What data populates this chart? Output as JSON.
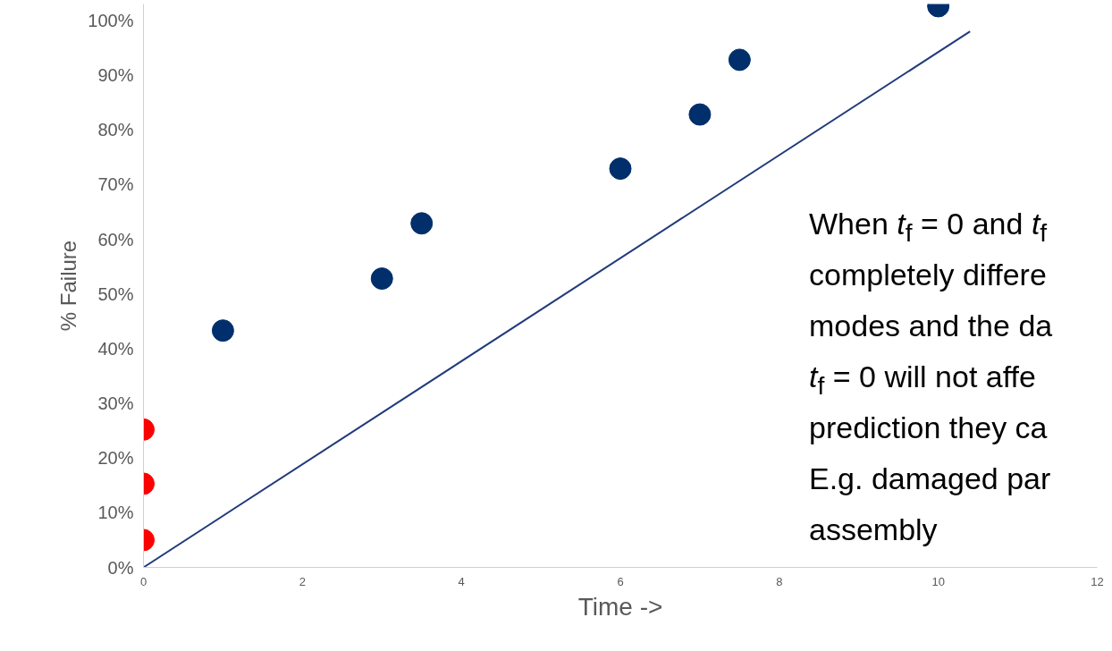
{
  "chart_data": {
    "type": "scatter",
    "xlabel": "Time ->",
    "ylabel": "% Failure",
    "xlim": [
      0,
      12
    ],
    "xticks": [
      0,
      2,
      4,
      6,
      8,
      10,
      12
    ],
    "ylim": [
      0,
      103
    ],
    "yticks": [
      {
        "value": 0,
        "label": "0%"
      },
      {
        "value": 10,
        "label": "10%"
      },
      {
        "value": 20,
        "label": "20%"
      },
      {
        "value": 30,
        "label": "30%"
      },
      {
        "value": 40,
        "label": "40%"
      },
      {
        "value": 50,
        "label": "50%"
      },
      {
        "value": 60,
        "label": "60%"
      },
      {
        "value": 70,
        "label": "70%"
      },
      {
        "value": 80,
        "label": "80%"
      },
      {
        "value": 90,
        "label": "90%"
      },
      {
        "value": 100,
        "label": "100%"
      }
    ],
    "grid": false,
    "marker": "circle",
    "series": [
      {
        "type": "line",
        "marker": "none",
        "color": "#1f3a7a",
        "x": [
          0,
          10.4
        ],
        "values": [
          0,
          98
        ]
      },
      {
        "color": "#ff0000",
        "x": [
          0,
          0,
          0
        ],
        "values": [
          5,
          15.3,
          25.2
        ]
      },
      {
        "color": "#002f6c",
        "x": [
          1,
          3,
          3.5,
          6,
          7,
          7.5,
          10
        ],
        "values": [
          43.3,
          52.8,
          62.9,
          72.9,
          82.8,
          92.8,
          102.6
        ]
      }
    ],
    "annotations": [
      "When t$_{f}$ = 0 and t$_{f}$\ncompletely differe\nmodes and the da\nt$_{f}$ = 0 will not affe\nprediction they ca\nE.g. damaged par\nassembly"
    ]
  }
}
